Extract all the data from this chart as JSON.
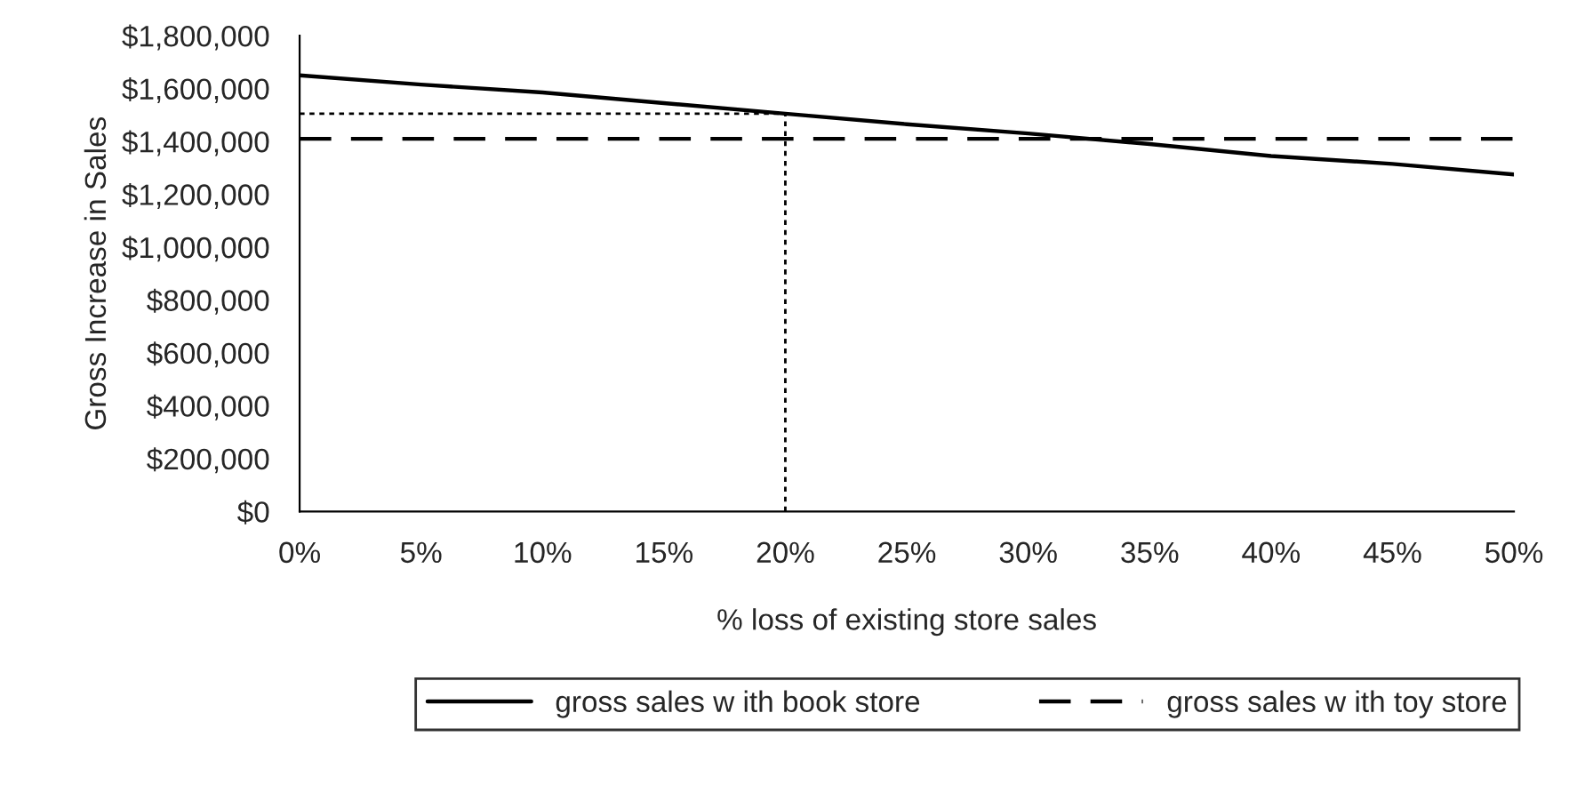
{
  "chart_data": {
    "type": "line",
    "xlabel": "% loss of existing store sales",
    "ylabel": "Gross Increase in Sales",
    "x": [
      0,
      5,
      10,
      15,
      20,
      25,
      30,
      35,
      40,
      45,
      50
    ],
    "series": [
      {
        "name": "gross sales w ith book store",
        "color": "#000000",
        "line_style": "solid",
        "values": [
          1650000,
          1615000,
          1585000,
          1545000,
          1505000,
          1465000,
          1430000,
          1390000,
          1345000,
          1315000,
          1275000
        ]
      },
      {
        "name": "gross sales w ith toy store",
        "color": "#000000",
        "line_style": "dashed",
        "values": [
          1410000,
          1410000,
          1410000,
          1410000,
          1410000,
          1410000,
          1410000,
          1410000,
          1410000,
          1410000,
          1410000
        ]
      }
    ],
    "ref_lines": [
      {
        "axis": "x",
        "value": 20,
        "color": "#000000",
        "line_style": "dotted"
      },
      {
        "axis": "y",
        "value": 1505000,
        "color": "#000000",
        "line_style": "dotted"
      }
    ],
    "xlim": [
      0,
      50
    ],
    "ylim": [
      0,
      1800000
    ],
    "xticks": [
      {
        "value": 0,
        "label": "0%"
      },
      {
        "value": 5,
        "label": "5%"
      },
      {
        "value": 10,
        "label": "10%"
      },
      {
        "value": 15,
        "label": "15%"
      },
      {
        "value": 20,
        "label": "20%"
      },
      {
        "value": 25,
        "label": "25%"
      },
      {
        "value": 30,
        "label": "30%"
      },
      {
        "value": 35,
        "label": "35%"
      },
      {
        "value": 40,
        "label": "40%"
      },
      {
        "value": 45,
        "label": "45%"
      },
      {
        "value": 50,
        "label": "50%"
      }
    ],
    "yticks": [
      {
        "value": 0,
        "label": "$0"
      },
      {
        "value": 200000,
        "label": "$200,000"
      },
      {
        "value": 400000,
        "label": "$400,000"
      },
      {
        "value": 600000,
        "label": "$600,000"
      },
      {
        "value": 800000,
        "label": "$800,000"
      },
      {
        "value": 1000000,
        "label": "$1,000,000"
      },
      {
        "value": 1200000,
        "label": "$1,200,000"
      },
      {
        "value": 1400000,
        "label": "$1,400,000"
      },
      {
        "value": 1600000,
        "label": "$1,600,000"
      },
      {
        "value": 1800000,
        "label": "$1,800,000"
      }
    ],
    "grid": false,
    "legend": "bottom"
  }
}
